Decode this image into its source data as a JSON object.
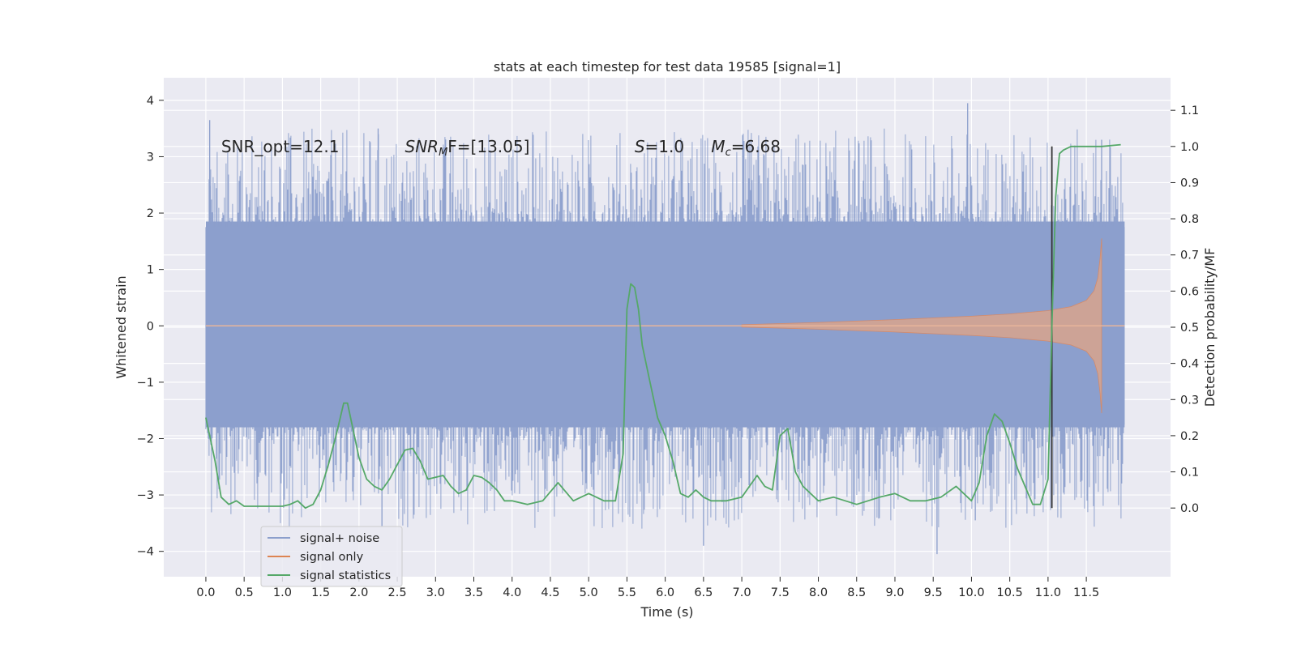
{
  "chart_data": {
    "type": "line",
    "title": "stats at each timestep for test data 19585 [signal=1]",
    "xlabel": "Time (s)",
    "ylabel": "Whitened strain",
    "y2label": "Detection probability/MF",
    "xlim": [
      -0.55,
      12.6
    ],
    "ylim": [
      -4.45,
      4.4
    ],
    "y2lim": [
      -0.19,
      1.19
    ],
    "xticks": [
      0.0,
      0.5,
      1.0,
      1.5,
      2.0,
      2.5,
      3.0,
      3.5,
      4.0,
      4.5,
      5.0,
      5.5,
      6.0,
      6.5,
      7.0,
      7.5,
      8.0,
      8.5,
      9.0,
      9.5,
      10.0,
      10.5,
      11.0,
      11.5
    ],
    "xtick_labels": [
      "0.0",
      "0.5",
      "1.0",
      "1.5",
      "2.0",
      "2.5",
      "3.0",
      "3.5",
      "4.0",
      "4.5",
      "5.0",
      "5.5",
      "6.0",
      "6.5",
      "7.0",
      "7.5",
      "8.0",
      "8.5",
      "9.0",
      "9.5",
      "10.0",
      "10.5",
      "11.0",
      "11.5"
    ],
    "yticks": [
      -4,
      -3,
      -2,
      -1,
      0,
      1,
      2,
      3,
      4
    ],
    "ytick_labels": [
      "−4",
      "−3",
      "−2",
      "−1",
      "0",
      "1",
      "2",
      "3",
      "4"
    ],
    "y2ticks": [
      0.0,
      0.1,
      0.2,
      0.3,
      0.4,
      0.5,
      0.6,
      0.7,
      0.8,
      0.9,
      1.0,
      1.1
    ],
    "y2tick_labels": [
      "0.0",
      "0.1",
      "0.2",
      "0.3",
      "0.4",
      "0.5",
      "0.6",
      "0.7",
      "0.8",
      "0.9",
      "1.0",
      "1.1"
    ],
    "annotations": [
      {
        "text": "SNR_opt=12.1",
        "x": 0.2,
        "y": 3.18
      },
      {
        "text": "SNR",
        "sub": "M",
        "rest": "F=[13.05]",
        "italic": true,
        "x": 2.6,
        "y": 3.18
      },
      {
        "text": "S",
        "rest": "=1.0",
        "italic": true,
        "x": 5.6,
        "y": 3.18
      },
      {
        "text": "M",
        "sub": "c",
        "rest": "=6.68",
        "italic": true,
        "x": 6.6,
        "y": 3.18
      }
    ],
    "series": [
      {
        "name": "signal+ noise",
        "color": "#8c9fcc",
        "kind": "noise",
        "x_range": [
          0.0,
          12.0
        ],
        "core_band": [
          -1.8,
          1.85
        ],
        "spike_peaks": [
          {
            "x": 0.05,
            "y": 3.65
          },
          {
            "x": 2.25,
            "y": 3.5
          },
          {
            "x": 9.95,
            "y": 3.95
          },
          {
            "x": 11.7,
            "y": 3.3
          },
          {
            "x": 6.5,
            "y": -3.9
          },
          {
            "x": 9.55,
            "y": -4.05
          },
          {
            "x": 2.3,
            "y": -3.55
          },
          {
            "x": 10.05,
            "y": -3.45
          }
        ]
      },
      {
        "name": "signal only",
        "color": "#dd8452",
        "kind": "chirp",
        "x": [
          7.0,
          8.0,
          9.0,
          10.0,
          10.5,
          11.0,
          11.3,
          11.5,
          11.6,
          11.65,
          11.68,
          11.7
        ],
        "amplitude": [
          0.02,
          0.06,
          0.11,
          0.17,
          0.21,
          0.27,
          0.34,
          0.45,
          0.62,
          0.85,
          1.2,
          1.55
        ],
        "end_x": 11.7
      },
      {
        "name": "signal statistics",
        "color": "#55a868",
        "axis": "y2",
        "x": [
          0.0,
          0.05,
          0.12,
          0.2,
          0.3,
          0.4,
          0.5,
          0.55,
          0.7,
          0.85,
          1.0,
          1.1,
          1.2,
          1.3,
          1.4,
          1.5,
          1.6,
          1.7,
          1.8,
          1.85,
          1.9,
          2.0,
          2.1,
          2.2,
          2.3,
          2.4,
          2.5,
          2.6,
          2.7,
          2.8,
          2.9,
          3.0,
          3.1,
          3.2,
          3.3,
          3.4,
          3.5,
          3.6,
          3.7,
          3.8,
          3.9,
          4.0,
          4.2,
          4.4,
          4.5,
          4.6,
          4.8,
          5.0,
          5.2,
          5.35,
          5.45,
          5.5,
          5.55,
          5.6,
          5.65,
          5.7,
          5.8,
          5.9,
          6.0,
          6.1,
          6.2,
          6.3,
          6.4,
          6.5,
          6.6,
          6.8,
          7.0,
          7.1,
          7.2,
          7.3,
          7.4,
          7.5,
          7.6,
          7.7,
          7.8,
          8.0,
          8.2,
          8.5,
          8.8,
          9.0,
          9.2,
          9.4,
          9.6,
          9.8,
          10.0,
          10.1,
          10.2,
          10.3,
          10.4,
          10.5,
          10.6,
          10.7,
          10.8,
          10.9,
          11.0,
          11.05,
          11.1,
          11.15,
          11.2,
          11.3,
          11.5,
          11.7,
          11.95
        ],
        "values": [
          0.25,
          0.2,
          0.13,
          0.03,
          0.01,
          0.02,
          0.005,
          0.005,
          0.005,
          0.005,
          0.005,
          0.01,
          0.02,
          0.0,
          0.01,
          0.05,
          0.12,
          0.2,
          0.29,
          0.29,
          0.24,
          0.14,
          0.08,
          0.06,
          0.05,
          0.08,
          0.12,
          0.16,
          0.165,
          0.13,
          0.08,
          0.085,
          0.09,
          0.06,
          0.04,
          0.05,
          0.09,
          0.085,
          0.07,
          0.05,
          0.02,
          0.02,
          0.01,
          0.02,
          0.045,
          0.07,
          0.02,
          0.04,
          0.02,
          0.02,
          0.15,
          0.55,
          0.62,
          0.61,
          0.55,
          0.45,
          0.35,
          0.25,
          0.2,
          0.13,
          0.04,
          0.03,
          0.05,
          0.03,
          0.02,
          0.02,
          0.03,
          0.06,
          0.09,
          0.06,
          0.05,
          0.2,
          0.22,
          0.1,
          0.06,
          0.02,
          0.03,
          0.01,
          0.03,
          0.04,
          0.02,
          0.02,
          0.03,
          0.06,
          0.02,
          0.07,
          0.2,
          0.26,
          0.24,
          0.18,
          0.11,
          0.06,
          0.01,
          0.01,
          0.08,
          0.5,
          0.86,
          0.98,
          0.99,
          1.0,
          1.0,
          1.0,
          1.005
        ]
      }
    ],
    "vline": {
      "x": 11.05,
      "y2_range": [
        0.0,
        1.0
      ],
      "color": "#333333"
    },
    "legend": {
      "placement": "lower-left",
      "entries": [
        "signal+ noise",
        "signal only",
        "signal statistics"
      ]
    },
    "grid": true,
    "background": "#eaeaf2"
  }
}
